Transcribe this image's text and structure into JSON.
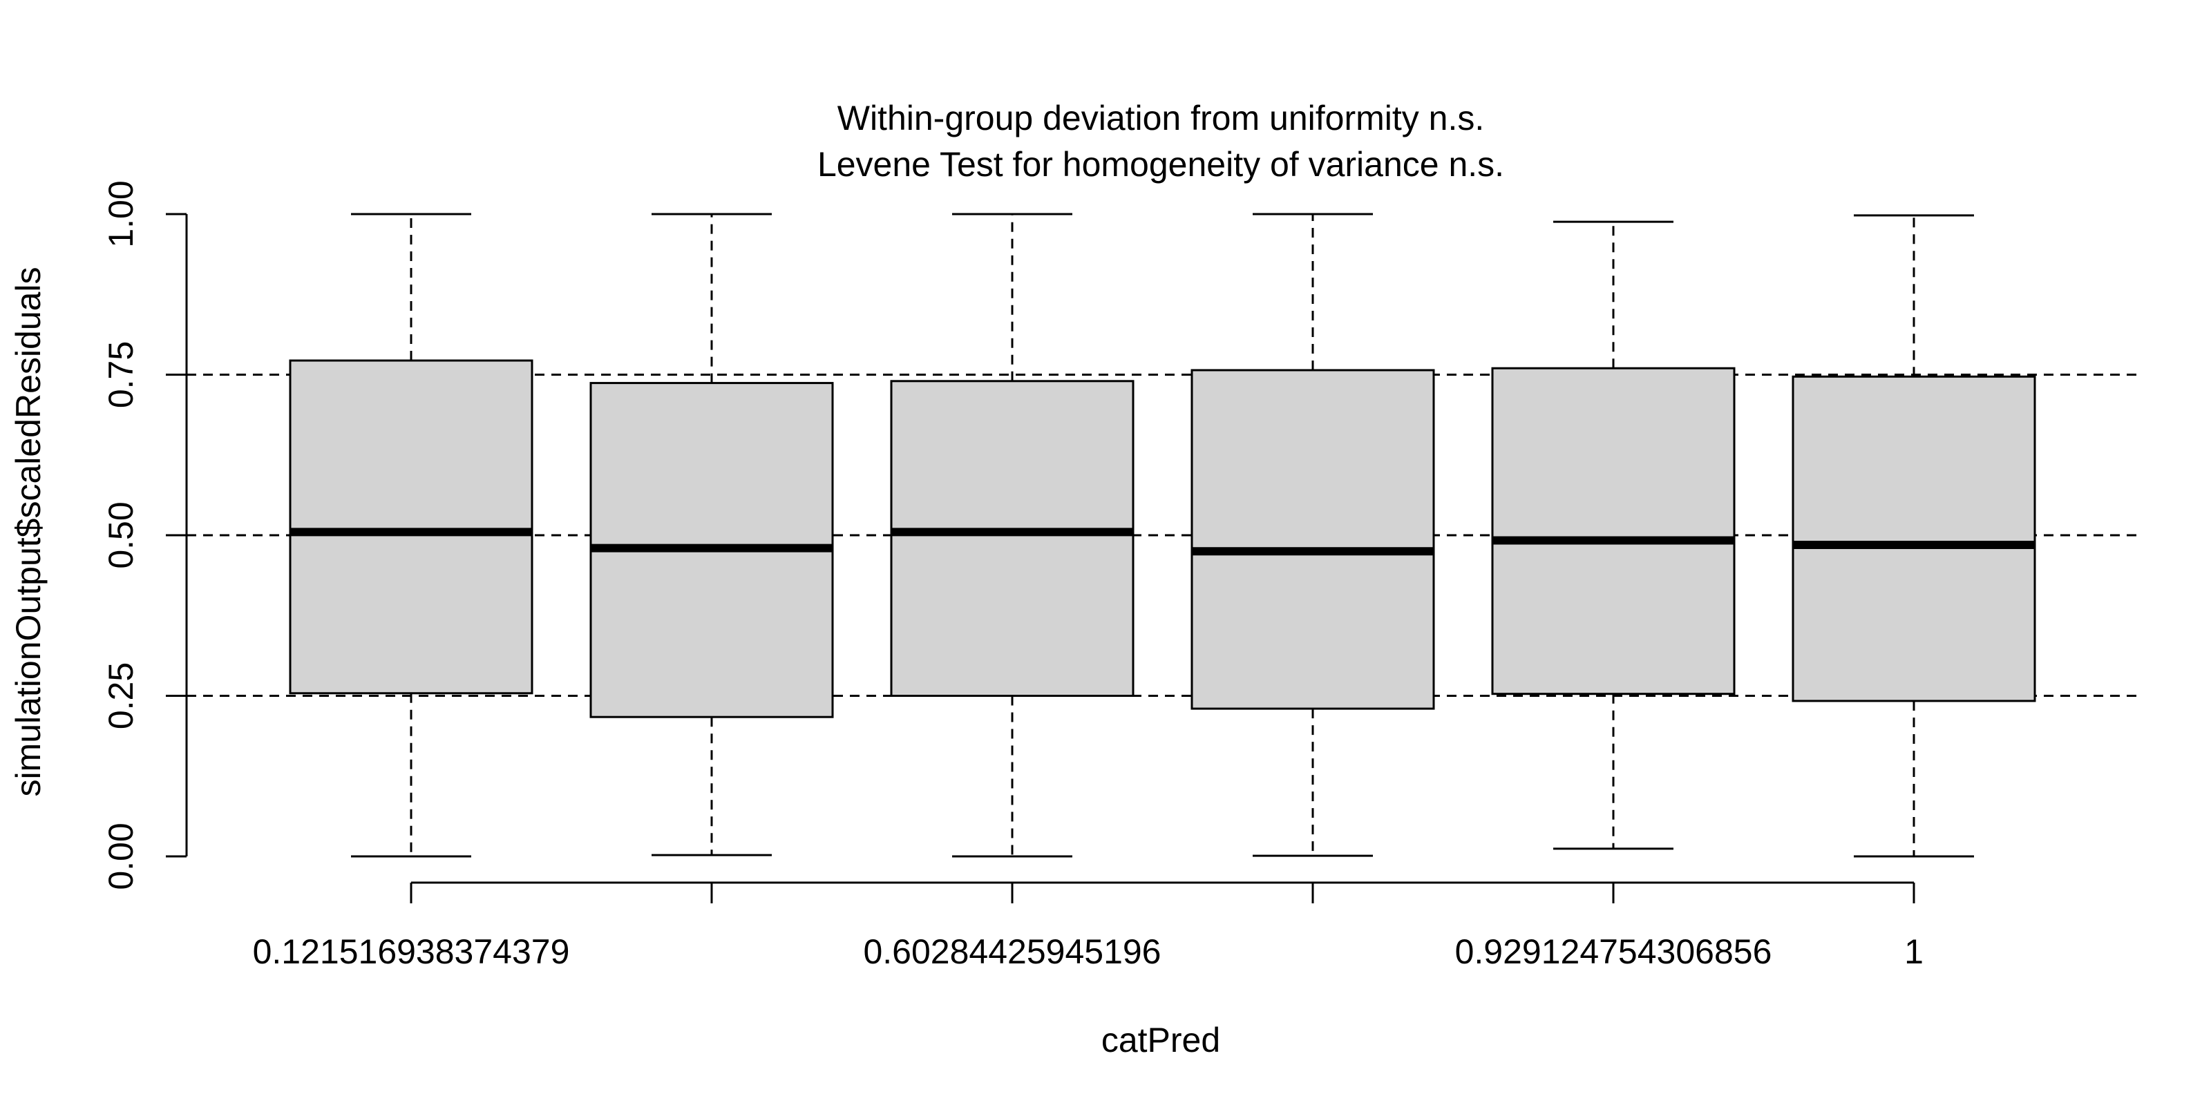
{
  "chart_data": {
    "type": "boxplot",
    "title": "Within-group deviation from uniformity n.s.",
    "subtitle": "Levene Test for homogeneity of variance n.s.",
    "xlabel": "catPred",
    "ylabel": "simulationOutput$scaledResiduals",
    "ylim": [
      0,
      1
    ],
    "yticks": [
      "0.00",
      "0.25",
      "0.50",
      "0.75",
      "1.00"
    ],
    "ytick_values": [
      0,
      0.25,
      0.5,
      0.75,
      1.0
    ],
    "reference_lines": [
      0.25,
      0.5,
      0.75
    ],
    "categories": [
      "0.121516938374379",
      "",
      "0.60284425945196",
      "",
      "0.929124754306856",
      "1"
    ],
    "boxes": [
      {
        "min": 0.0,
        "q1": 0.254,
        "median": 0.505,
        "q3": 0.772,
        "max": 1.0
      },
      {
        "min": 0.002,
        "q1": 0.217,
        "median": 0.48,
        "q3": 0.737,
        "max": 1.0
      },
      {
        "min": 0.0,
        "q1": 0.25,
        "median": 0.505,
        "q3": 0.74,
        "max": 1.0
      },
      {
        "min": 0.001,
        "q1": 0.23,
        "median": 0.475,
        "q3": 0.757,
        "max": 1.0
      },
      {
        "min": 0.012,
        "q1": 0.253,
        "median": 0.492,
        "q3": 0.76,
        "max": 0.988
      },
      {
        "min": 0.0,
        "q1": 0.242,
        "median": 0.485,
        "q3": 0.747,
        "max": 0.998
      }
    ],
    "colors": {
      "box_fill": "#d3d3d3",
      "stroke": "#000000",
      "reference_line": "#000000"
    },
    "grid": false,
    "legend": "none"
  }
}
